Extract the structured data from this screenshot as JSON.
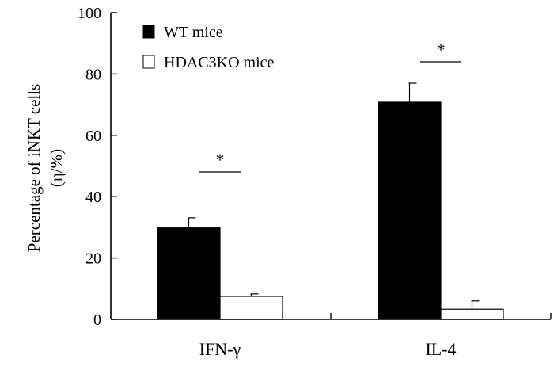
{
  "chart_data": {
    "type": "bar",
    "categories": [
      "IFN-γ",
      "IL-4"
    ],
    "series": [
      {
        "name": "WT mice",
        "values": [
          29.8,
          70.8
        ],
        "errors": [
          3.3,
          6.2
        ],
        "fill": "#000000"
      },
      {
        "name": "HDAC3KO mice",
        "values": [
          7.5,
          3.3
        ],
        "errors": [
          0.8,
          2.7
        ],
        "fill": "#ffffff"
      }
    ],
    "ylabel_line1": "Percentage of iNKT cells",
    "ylabel_line2": "(η/%)",
    "xlabel": "",
    "ylim": [
      0,
      100
    ],
    "yticks": [
      0,
      20,
      40,
      60,
      80,
      100
    ],
    "significance": [
      "*",
      "*"
    ],
    "legend_position": "top-left"
  }
}
